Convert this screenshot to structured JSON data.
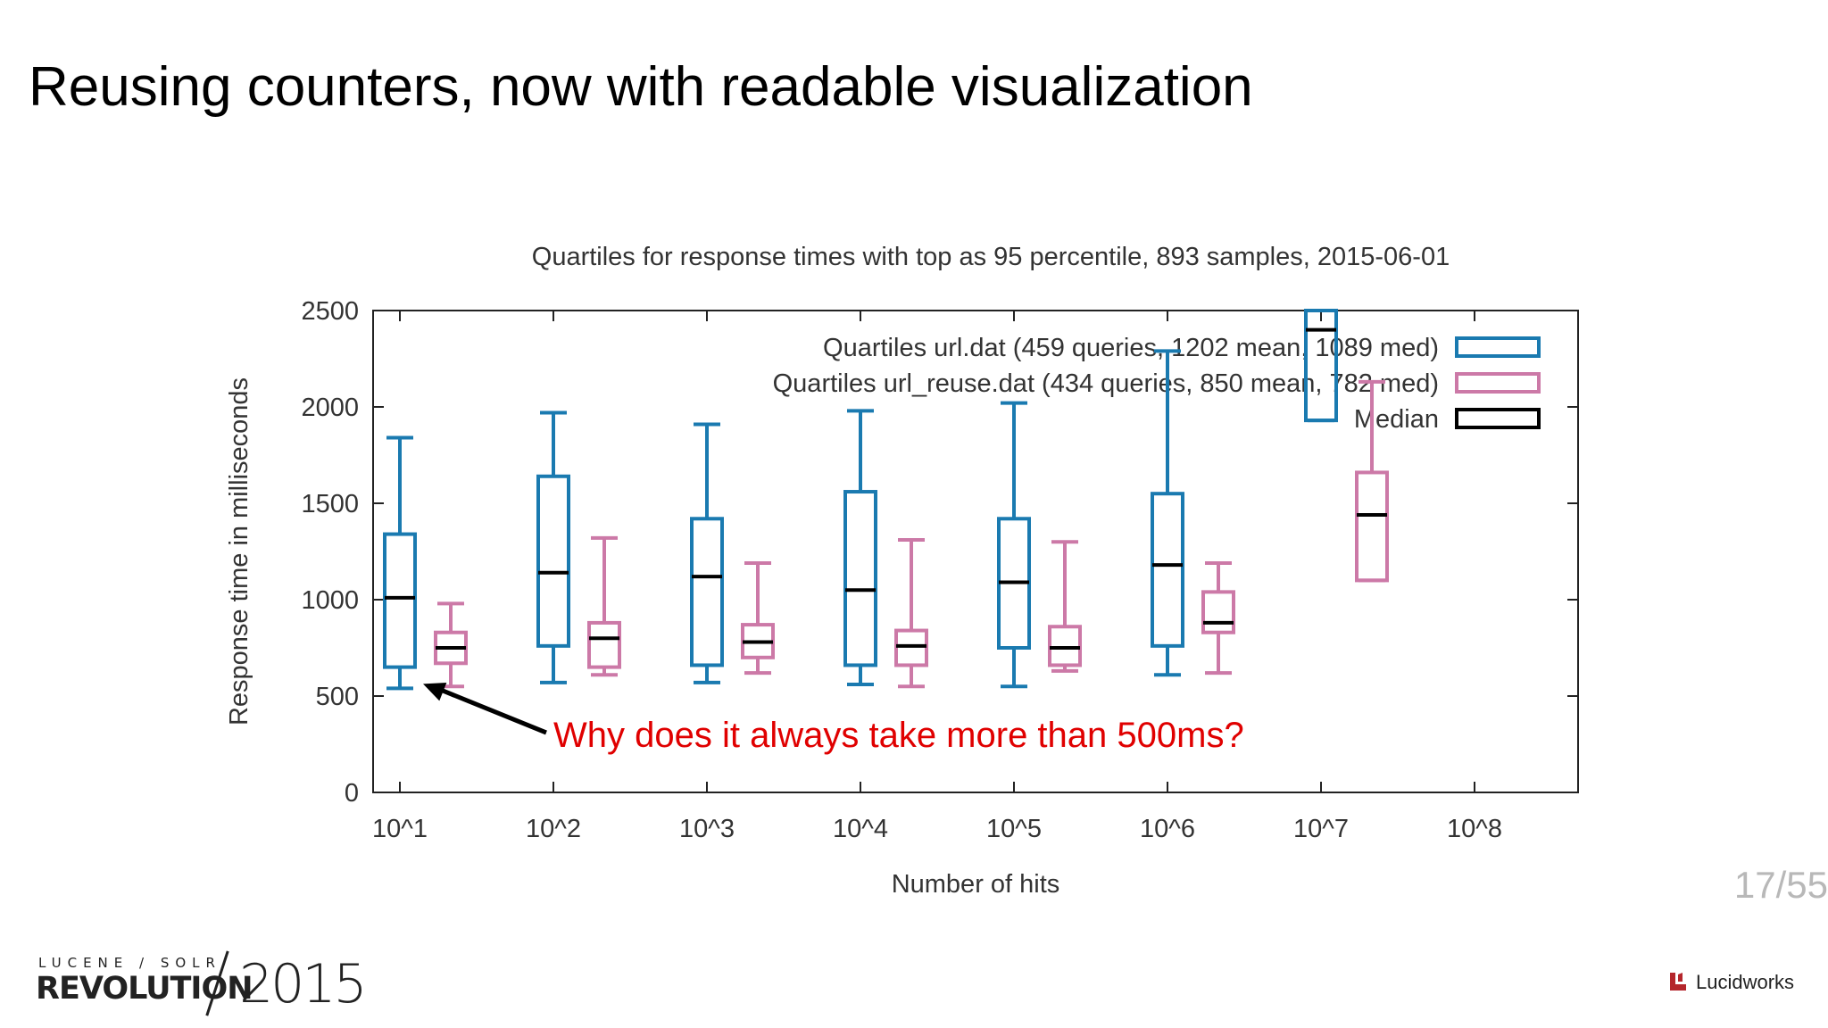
{
  "slide": {
    "title": "Reusing counters, now with readable visualization",
    "page_number": "17/55"
  },
  "footer": {
    "conference_small": "LUCENE / SOLR",
    "conference_big": "REVOLUTION",
    "conference_year": "2015",
    "brand": "Lucidworks"
  },
  "colors": {
    "url": "#1a7ab0",
    "url_reuse": "#cc79a7",
    "median": "#000000",
    "annotation": "#e00000",
    "brand_mark": "#b5262c"
  },
  "icons": {
    "brand_mark": "lucidworks-logo-icon"
  },
  "chart_data": {
    "type": "boxplot",
    "title": "Quartiles for response times with top as 95 percentile, 893 samples, 2015-06-01",
    "xlabel": "Number of hits",
    "ylabel": "Response time in milliseconds",
    "ylim": [
      0,
      2500
    ],
    "yticks": [
      0,
      500,
      1000,
      1500,
      2000,
      2500
    ],
    "categories": [
      "10^1",
      "10^2",
      "10^3",
      "10^4",
      "10^5",
      "10^6",
      "10^7",
      "10^8"
    ],
    "legend_position": "top-right",
    "legend": [
      "Quartiles url.dat (459 queries, 1202 mean, 1089 med)",
      "Quartiles url_reuse.dat (434 queries, 850 mean, 782 med)",
      "Median"
    ],
    "series": [
      {
        "name": "Quartiles url.dat (459 queries, 1202 mean, 1089 med)",
        "boxes": [
          {
            "category": "10^1",
            "min": 540,
            "q1": 650,
            "median": 1010,
            "q3": 1340,
            "max": 1840
          },
          {
            "category": "10^2",
            "min": 570,
            "q1": 760,
            "median": 1140,
            "q3": 1640,
            "max": 1970
          },
          {
            "category": "10^3",
            "min": 570,
            "q1": 660,
            "median": 1120,
            "q3": 1420,
            "max": 1910
          },
          {
            "category": "10^4",
            "min": 560,
            "q1": 660,
            "median": 1050,
            "q3": 1560,
            "max": 1980
          },
          {
            "category": "10^5",
            "min": 550,
            "q1": 750,
            "median": 1090,
            "q3": 1420,
            "max": 2020
          },
          {
            "category": "10^6",
            "min": 610,
            "q1": 760,
            "median": 1180,
            "q3": 1550,
            "max": 2290
          },
          {
            "category": "10^7",
            "min": 1930,
            "q1": 1930,
            "median": 2400,
            "q3": 2500,
            "max": 2500
          }
        ]
      },
      {
        "name": "Quartiles url_reuse.dat (434 queries, 850 mean, 782 med)",
        "boxes": [
          {
            "category": "10^1",
            "min": 550,
            "q1": 670,
            "median": 750,
            "q3": 830,
            "max": 980
          },
          {
            "category": "10^2",
            "min": 610,
            "q1": 650,
            "median": 800,
            "q3": 880,
            "max": 1320
          },
          {
            "category": "10^3",
            "min": 620,
            "q1": 700,
            "median": 780,
            "q3": 870,
            "max": 1190
          },
          {
            "category": "10^4",
            "min": 550,
            "q1": 660,
            "median": 760,
            "q3": 840,
            "max": 1310
          },
          {
            "category": "10^5",
            "min": 630,
            "q1": 660,
            "median": 750,
            "q3": 860,
            "max": 1300
          },
          {
            "category": "10^6",
            "min": 620,
            "q1": 830,
            "median": 880,
            "q3": 1040,
            "max": 1190
          },
          {
            "category": "10^7",
            "min": 1100,
            "q1": 1100,
            "median": 1440,
            "q3": 1660,
            "max": 2130
          }
        ]
      }
    ],
    "annotation": {
      "text": "Why does it always take more than 500ms?",
      "points_to": {
        "category": "10^1",
        "value": 540
      }
    }
  }
}
